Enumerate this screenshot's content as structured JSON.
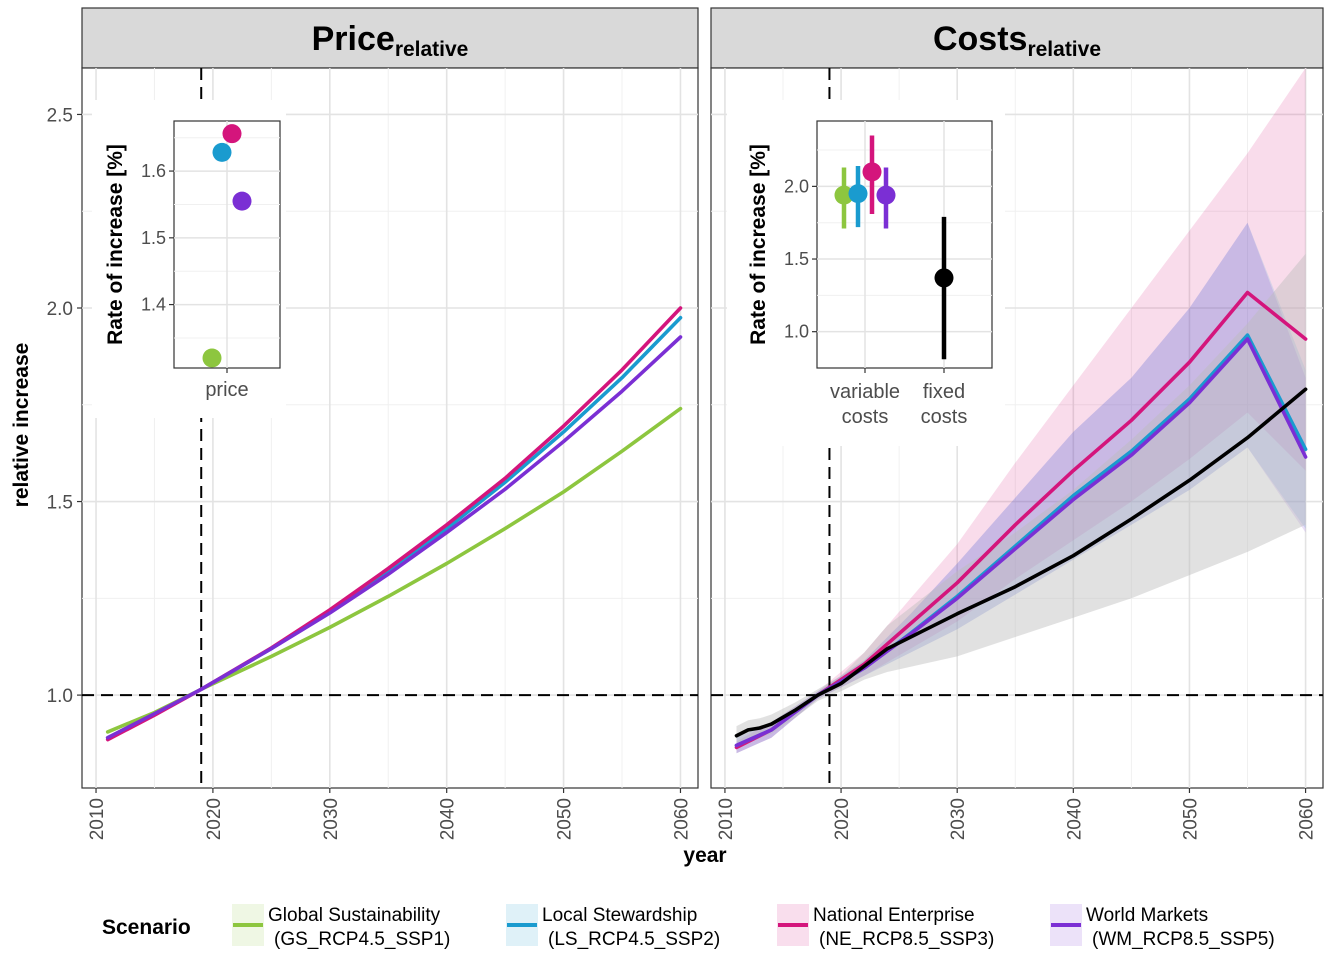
{
  "colors": {
    "GS": "#8dc63f",
    "LS": "#1a9bcf",
    "NE": "#d4157c",
    "WM": "#7b2fd4",
    "costs_fixed": "#000000",
    "ribbon_fixed": "#bdbdbd"
  },
  "chart_data": [
    {
      "type": "line",
      "panel": "left",
      "title": "Price",
      "title_subscript": "relative",
      "xlabel": "year",
      "ylabel": "relative increase",
      "xlim": [
        2008.8,
        2061.5
      ],
      "ylim": [
        0.76,
        2.62
      ],
      "xticks": [
        2010,
        2020,
        2030,
        2040,
        2050,
        2060
      ],
      "yticks": [
        1.0,
        1.5,
        2.0,
        2.5
      ],
      "ytick_labels": [
        "1.0",
        "1.5",
        "2.0",
        "2.5"
      ],
      "reference_lines": {
        "vertical_x": 2019,
        "horizontal_y": 1.0
      },
      "series": [
        {
          "key": "GS",
          "x": [
            2011,
            2015,
            2019,
            2025,
            2030,
            2035,
            2040,
            2045,
            2050,
            2055,
            2060
          ],
          "y": [
            0.905,
            0.955,
            1.015,
            1.1,
            1.175,
            1.255,
            1.34,
            1.43,
            1.525,
            1.63,
            1.74
          ]
        },
        {
          "key": "LS",
          "x": [
            2011,
            2015,
            2019,
            2025,
            2030,
            2035,
            2040,
            2045,
            2050,
            2055,
            2060
          ],
          "y": [
            0.89,
            0.95,
            1.015,
            1.12,
            1.215,
            1.32,
            1.43,
            1.55,
            1.68,
            1.82,
            1.975
          ]
        },
        {
          "key": "NE",
          "x": [
            2011,
            2015,
            2019,
            2025,
            2030,
            2035,
            2040,
            2045,
            2050,
            2055,
            2060
          ],
          "y": [
            0.885,
            0.948,
            1.015,
            1.122,
            1.22,
            1.327,
            1.44,
            1.56,
            1.695,
            1.84,
            2.0
          ]
        },
        {
          "key": "WM",
          "x": [
            2011,
            2015,
            2019,
            2025,
            2030,
            2035,
            2040,
            2045,
            2050,
            2055,
            2060
          ],
          "y": [
            0.89,
            0.952,
            1.015,
            1.12,
            1.212,
            1.312,
            1.42,
            1.532,
            1.655,
            1.785,
            1.925
          ]
        }
      ],
      "inset": {
        "type": "scatter",
        "ylabel": "Rate of increase [%]",
        "categories": [
          "price"
        ],
        "ylim": [
          1.305,
          1.675
        ],
        "yticks": [
          1.4,
          1.5,
          1.6
        ],
        "ytick_labels": [
          "1.4",
          "1.5",
          "1.6"
        ],
        "points": [
          {
            "key": "GS",
            "y": 1.32
          },
          {
            "key": "LS",
            "y": 1.628
          },
          {
            "key": "NE",
            "y": 1.656
          },
          {
            "key": "WM",
            "y": 1.555
          }
        ]
      }
    },
    {
      "type": "line",
      "panel": "right",
      "title": "Costs",
      "title_subscript": "relative",
      "xlabel": "year",
      "ylabel": "relative increase",
      "xlim": [
        2008.8,
        2061.5
      ],
      "ylim": [
        0.76,
        2.62
      ],
      "xticks": [
        2010,
        2020,
        2030,
        2040,
        2050,
        2060
      ],
      "yticks": [
        1.0,
        1.5,
        2.0,
        2.5
      ],
      "ytick_labels": [
        "1.0",
        "1.5",
        "2.0",
        "2.5"
      ],
      "reference_lines": {
        "vertical_x": 2019,
        "horizontal_y": 1.0
      },
      "series": [
        {
          "key": "NE",
          "x": [
            2011,
            2014,
            2018,
            2022,
            2026,
            2030,
            2035,
            2040,
            2045,
            2050,
            2055,
            2060
          ],
          "y": [
            0.865,
            0.91,
            1.0,
            1.08,
            1.185,
            1.29,
            1.44,
            1.58,
            1.71,
            1.86,
            2.04,
            1.92
          ],
          "lower": [
            0.85,
            0.89,
            0.99,
            1.05,
            1.12,
            1.19,
            1.3,
            1.4,
            1.5,
            1.61,
            1.73,
            1.58
          ],
          "upper": [
            0.88,
            0.93,
            1.01,
            1.11,
            1.25,
            1.39,
            1.6,
            1.8,
            2.0,
            2.2,
            2.4,
            2.62
          ]
        },
        {
          "key": "LS",
          "x": [
            2011,
            2014,
            2018,
            2022,
            2026,
            2030,
            2035,
            2040,
            2045,
            2050,
            2055,
            2060
          ],
          "y": [
            0.87,
            0.91,
            1.0,
            1.07,
            1.16,
            1.255,
            1.385,
            1.515,
            1.63,
            1.765,
            1.93,
            1.635
          ],
          "lower": [
            0.85,
            0.89,
            0.99,
            1.05,
            1.11,
            1.17,
            1.26,
            1.35,
            1.44,
            1.53,
            1.64,
            1.43
          ],
          "upper": [
            0.89,
            0.93,
            1.01,
            1.09,
            1.21,
            1.34,
            1.51,
            1.68,
            1.82,
            2.0,
            2.22,
            1.84
          ]
        },
        {
          "key": "WM",
          "x": [
            2011,
            2014,
            2018,
            2022,
            2026,
            2030,
            2035,
            2040,
            2045,
            2050,
            2055,
            2060
          ],
          "y": [
            0.87,
            0.91,
            1.0,
            1.07,
            1.158,
            1.25,
            1.378,
            1.505,
            1.62,
            1.755,
            1.92,
            1.615
          ],
          "lower": [
            0.85,
            0.89,
            0.99,
            1.05,
            1.11,
            1.17,
            1.26,
            1.35,
            1.44,
            1.53,
            1.64,
            1.42
          ],
          "upper": [
            0.89,
            0.93,
            1.01,
            1.09,
            1.21,
            1.34,
            1.51,
            1.68,
            1.82,
            2.0,
            2.22,
            1.82
          ]
        },
        {
          "key": "costs_fixed",
          "x": [
            2011,
            2012,
            2013,
            2014,
            2016,
            2018,
            2020,
            2022,
            2024,
            2027,
            2030,
            2035,
            2040,
            2045,
            2050,
            2055,
            2060
          ],
          "y": [
            0.895,
            0.91,
            0.915,
            0.925,
            0.96,
            1.0,
            1.03,
            1.075,
            1.12,
            1.165,
            1.21,
            1.28,
            1.36,
            1.455,
            1.555,
            1.665,
            1.79
          ],
          "lower": [
            0.87,
            0.885,
            0.89,
            0.9,
            0.94,
            0.985,
            1.01,
            1.04,
            1.06,
            1.08,
            1.1,
            1.15,
            1.2,
            1.25,
            1.31,
            1.37,
            1.44
          ],
          "upper": [
            0.92,
            0.935,
            0.94,
            0.95,
            0.98,
            1.015,
            1.05,
            1.11,
            1.18,
            1.25,
            1.32,
            1.42,
            1.53,
            1.66,
            1.8,
            1.96,
            2.14
          ]
        }
      ],
      "inset": {
        "type": "errorbar",
        "ylabel": "Rate of increase [%]",
        "categories": [
          "variable\ncosts",
          "fixed\ncosts"
        ],
        "category_lines": [
          [
            "variable",
            "costs"
          ],
          [
            "fixed",
            "costs"
          ]
        ],
        "ylim": [
          0.75,
          2.45
        ],
        "yticks": [
          1.0,
          1.5,
          2.0
        ],
        "ytick_labels": [
          "1.0",
          "1.5",
          "2.0"
        ],
        "points": [
          {
            "key": "GS",
            "category": 0,
            "y": 1.94,
            "low": 1.71,
            "high": 2.13
          },
          {
            "key": "LS",
            "category": 0,
            "y": 1.95,
            "low": 1.72,
            "high": 2.14
          },
          {
            "key": "NE",
            "category": 0,
            "y": 2.1,
            "low": 1.81,
            "high": 2.35
          },
          {
            "key": "WM",
            "category": 0,
            "y": 1.94,
            "low": 1.71,
            "high": 2.13
          },
          {
            "key": "costs_fixed",
            "category": 1,
            "y": 1.37,
            "low": 0.81,
            "high": 1.79
          }
        ]
      }
    }
  ],
  "legend": {
    "title": "Scenario",
    "items": [
      {
        "key": "GS",
        "line1": "Global Sustainability",
        "line2": "(GS_RCP4.5_SSP1)"
      },
      {
        "key": "LS",
        "line1": "Local Stewardship",
        "line2": "(LS_RCP4.5_SSP2)"
      },
      {
        "key": "NE",
        "line1": "National Enterprise",
        "line2": "(NE_RCP8.5_SSP3)"
      },
      {
        "key": "WM",
        "line1": "World Markets",
        "line2": "(WM_RCP8.5_SSP5)"
      }
    ]
  }
}
